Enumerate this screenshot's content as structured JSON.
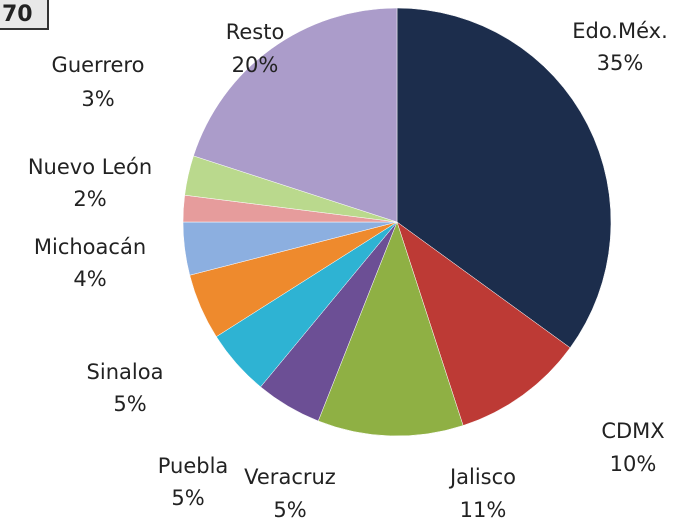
{
  "badge": "70",
  "chart_data": {
    "type": "pie",
    "categories": [
      "Edo.Méx.",
      "CDMX",
      "Jalisco",
      "Veracruz",
      "Puebla",
      "Sinaloa",
      "Michoacán",
      "Nuevo León",
      "Guerrero",
      "Resto"
    ],
    "values": [
      35,
      10,
      11,
      5,
      5,
      5,
      4,
      2,
      3,
      20
    ],
    "value_labels": [
      "35%",
      "10%",
      "11%",
      "5%",
      "5%",
      "5%",
      "4%",
      "2%",
      "3%",
      "20%"
    ],
    "colors": [
      "#1c2d4c",
      "#bd3a35",
      "#8fb044",
      "#6c4f95",
      "#2eb3d3",
      "#ee8a2d",
      "#8cafe0",
      "#e69c9c",
      "#bad98d",
      "#ab9cca"
    ]
  }
}
